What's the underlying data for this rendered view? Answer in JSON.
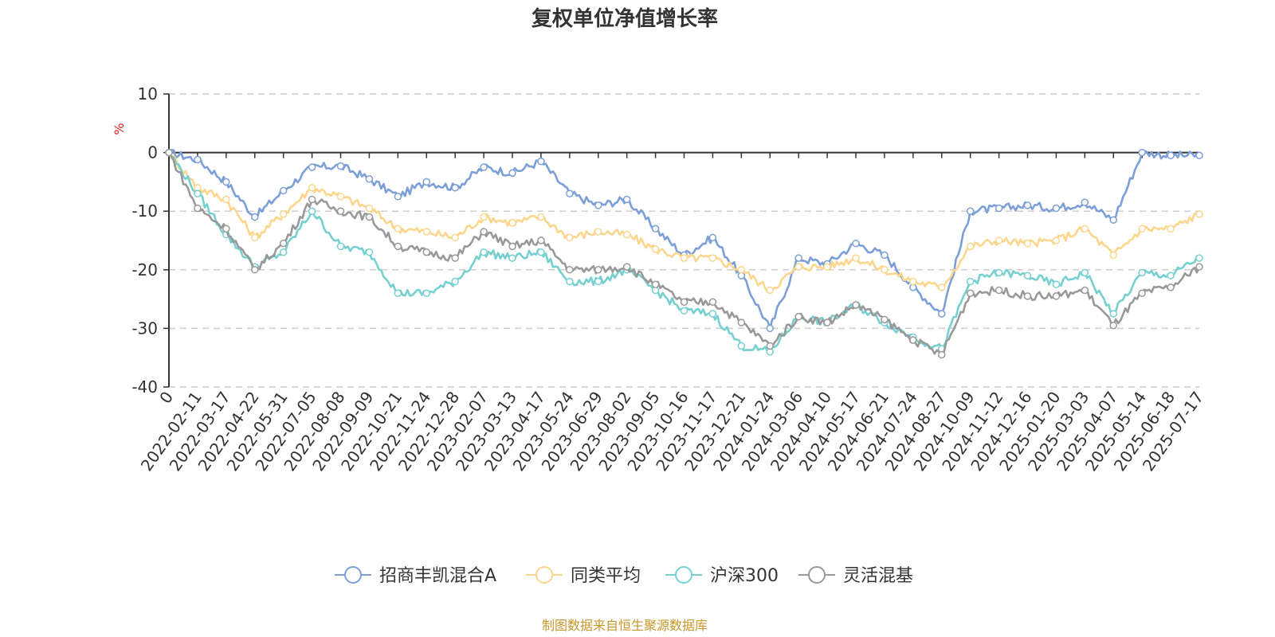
{
  "chart_data": {
    "type": "line",
    "title": "复权单位净值增长率",
    "ylabel": "%",
    "source": "制图数据来自恒生聚源数据库",
    "ylim": [
      -40,
      10
    ],
    "yticks": [
      10,
      0,
      -10,
      -20,
      -30,
      -40
    ],
    "grid": true,
    "legend_position": "bottom",
    "x": [
      "0",
      "2022-02-11",
      "2022-03-17",
      "2022-04-22",
      "2022-05-31",
      "2022-07-05",
      "2022-08-08",
      "2022-09-09",
      "2022-10-21",
      "2022-11-24",
      "2022-12-28",
      "2023-02-07",
      "2023-03-13",
      "2023-04-17",
      "2023-05-24",
      "2023-06-29",
      "2023-08-02",
      "2023-09-05",
      "2023-10-16",
      "2023-11-17",
      "2023-12-21",
      "2024-01-24",
      "2024-03-06",
      "2024-04-10",
      "2024-05-17",
      "2024-06-21",
      "2024-07-24",
      "2024-08-27",
      "2024-10-09",
      "2024-11-12",
      "2024-12-16",
      "2025-01-20",
      "2025-03-03",
      "2025-04-07",
      "2025-05-14",
      "2025-06-18",
      "2025-07-17"
    ],
    "series": [
      {
        "name": "招商丰凯混合A",
        "color": "#7b9fd6",
        "values": [
          0,
          -1.2,
          -5,
          -11,
          -6.5,
          -2.5,
          -2.3,
          -4.5,
          -7.5,
          -5,
          -6,
          -2.5,
          -3.5,
          -1.5,
          -7,
          -9,
          -8,
          -13,
          -17.5,
          -14.5,
          -21,
          -30,
          -18,
          -19,
          -15.5,
          -17.5,
          -23,
          -27.5,
          -10,
          -9.5,
          -9,
          -9.5,
          -8.5,
          -11.5,
          0,
          -0.5,
          -0.5
        ]
      },
      {
        "name": "同类平均",
        "color": "#fbd68c",
        "values": [
          0,
          -6,
          -8,
          -14.5,
          -10.5,
          -6,
          -7.5,
          -9.5,
          -13,
          -13.5,
          -14.5,
          -11,
          -12,
          -11,
          -14.5,
          -13.5,
          -14,
          -16.5,
          -18,
          -18,
          -20,
          -23.5,
          -19.5,
          -19.5,
          -18,
          -20,
          -22,
          -23,
          -16,
          -15,
          -15.5,
          -15,
          -13,
          -17.5,
          -13,
          -13,
          -10.5
        ]
      },
      {
        "name": "沪深300",
        "color": "#77d0d0",
        "values": [
          0,
          -7,
          -14,
          -19.5,
          -17,
          -10,
          -16,
          -17,
          -24,
          -24,
          -22,
          -17,
          -18,
          -17,
          -22,
          -22,
          -20,
          -23.5,
          -27,
          -27.5,
          -33,
          -34,
          -28,
          -29,
          -26,
          -29,
          -31.5,
          -33.5,
          -22,
          -20.5,
          -21,
          -22.5,
          -20.5,
          -27.5,
          -20.5,
          -21,
          -18
        ]
      },
      {
        "name": "灵活混基",
        "color": "#999999",
        "values": [
          0,
          -9.5,
          -13,
          -20,
          -15.5,
          -8,
          -10,
          -11,
          -16,
          -17,
          -18,
          -13.5,
          -16,
          -15,
          -20,
          -20,
          -19.5,
          -22.5,
          -25.5,
          -25.5,
          -29,
          -33,
          -28,
          -29,
          -26,
          -28.5,
          -32,
          -34.5,
          -24,
          -23.5,
          -24.5,
          -24.5,
          -23.5,
          -29.5,
          -24,
          -23,
          -19.5
        ]
      }
    ]
  }
}
